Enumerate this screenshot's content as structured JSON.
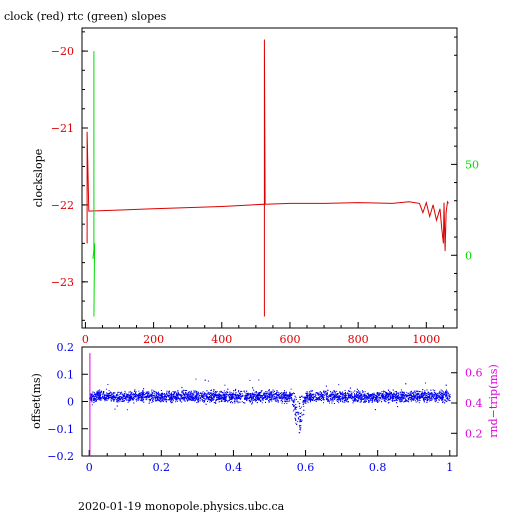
{
  "title": "clock (red) rtc (green) slopes",
  "footer": "2020-01-19  monopole.physics.ubc.ca",
  "colors": {
    "red": "#dd0000",
    "green": "#00dd00",
    "blue": "#0000ee",
    "magenta": "#dd00dd",
    "black": "#000000"
  },
  "chart_data": [
    {
      "type": "line",
      "title": "clock (red) rtc (green) slopes",
      "ylabel": "clockslope",
      "xlim": [
        -10,
        1090
      ],
      "ylim": [
        -23.6,
        -19.7
      ],
      "y2lim": [
        -40,
        125
      ],
      "xticks": [
        0,
        200,
        400,
        600,
        800,
        1000
      ],
      "xtick_labels": [
        "0",
        "200",
        "400",
        "600",
        "800",
        "1000"
      ],
      "yticks": [
        -20,
        -21,
        -22,
        -23
      ],
      "ytick_labels": [
        "−20",
        "−21",
        "−22",
        "−23"
      ],
      "y2ticks": [
        50,
        0
      ],
      "y2tick_labels": [
        "50",
        "0"
      ],
      "series": [
        {
          "name": "clock",
          "color": "#dd0000",
          "points": [
            [
              5,
              -22.5
            ],
            [
              5,
              -21.05
            ],
            [
              10,
              -22.08
            ],
            [
              200,
              -22.05
            ],
            [
              400,
              -22.02
            ],
            [
              525,
              -21.99
            ],
            [
              525,
              -23.45
            ],
            [
              525,
              -19.85
            ],
            [
              527,
              -21.99
            ],
            [
              600,
              -21.98
            ],
            [
              700,
              -21.98
            ],
            [
              800,
              -21.97
            ],
            [
              900,
              -21.98
            ],
            [
              950,
              -21.96
            ],
            [
              980,
              -21.98
            ],
            [
              990,
              -22.1
            ],
            [
              1000,
              -21.97
            ],
            [
              1010,
              -22.15
            ],
            [
              1020,
              -22.0
            ],
            [
              1030,
              -22.2
            ],
            [
              1040,
              -22.05
            ],
            [
              1045,
              -22.3
            ],
            [
              1050,
              -22.5
            ],
            [
              1052,
              -21.97
            ],
            [
              1055,
              -22.6
            ],
            [
              1058,
              -22.1
            ],
            [
              1062,
              -21.96
            ],
            [
              1065,
              -21.98
            ]
          ]
        },
        {
          "name": "rtc",
          "color": "#00dd00",
          "points": [
            [
              25,
              -20.0
            ],
            [
              25,
              -22.6
            ],
            [
              22,
              -22.7
            ],
            [
              27,
              -22.5
            ],
            [
              25,
              -23.45
            ]
          ]
        }
      ]
    },
    {
      "type": "scatter",
      "ylabel": "offset(ms)",
      "y2label": "rnd−trip(ms)",
      "xlim": [
        -0.02,
        1.02
      ],
      "ylim": [
        -0.2,
        0.2
      ],
      "y2lim": [
        0.05,
        0.77
      ],
      "xticks": [
        0,
        0.2,
        0.4,
        0.6,
        0.8,
        1
      ],
      "xtick_labels": [
        "0",
        "0.2",
        "0.4",
        "0.6",
        "0.8",
        "1"
      ],
      "yticks": [
        0.2,
        0.1,
        0,
        -0.1,
        -0.2
      ],
      "ytick_labels": [
        "0.2",
        "0.1",
        "0",
        "−0.1",
        "−0.2"
      ],
      "y2ticks": [
        0.6,
        0.4,
        0.2
      ],
      "y2tick_labels": [
        "0.6",
        "0.4",
        "0.2"
      ],
      "series": [
        {
          "name": "offset",
          "color": "#0000ee",
          "band_center": 0.02,
          "band_halfwidth": 0.03,
          "dip_x": 0.58,
          "dip_min": -0.14,
          "x_range": [
            0,
            1
          ]
        },
        {
          "name": "rnd-trip",
          "color": "#dd00dd",
          "points": [
            [
              0.002,
              0.73
            ],
            [
              0.002,
              0.05
            ]
          ]
        }
      ]
    }
  ]
}
